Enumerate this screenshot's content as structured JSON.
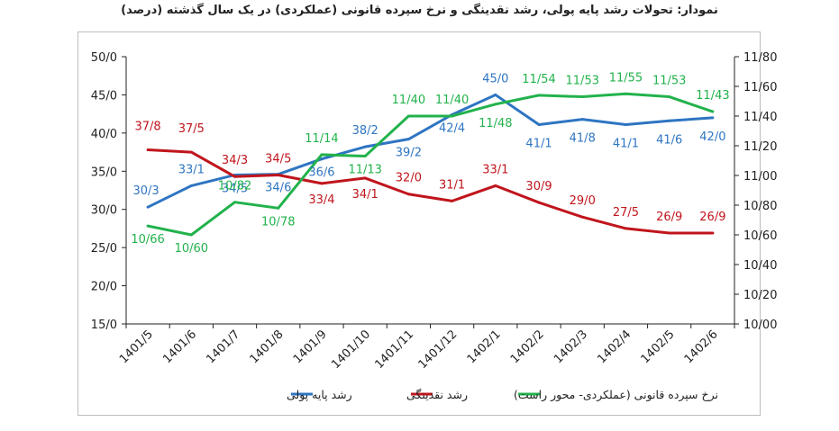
{
  "title": "نمودار: تحولات رشد پایه پولی، رشد نقدینگی و نرخ سپرده قانونی (عملکردی) در یک سال گذشته (درصد)",
  "chart_data": {
    "type": "line",
    "categories": [
      "1401/5",
      "1401/6",
      "1401/7",
      "1401/8",
      "1401/9",
      "1401/10",
      "1401/11",
      "1401/12",
      "1402/1",
      "1402/2",
      "1402/3",
      "1402/4",
      "1402/5",
      "1402/6"
    ],
    "y_left": {
      "min": 15,
      "max": 50,
      "step": 5,
      "tick_labels": [
        "15/0",
        "20/0",
        "25/0",
        "30/0",
        "35/0",
        "40/0",
        "45/0",
        "50/0"
      ]
    },
    "y_right": {
      "min": 10.0,
      "max": 11.8,
      "step": 0.2,
      "tick_labels": [
        "10/00",
        "10/20",
        "10/40",
        "10/60",
        "10/80",
        "11/00",
        "11/20",
        "11/40",
        "11/60",
        "11/80"
      ]
    },
    "grid": false,
    "legend_position": "bottom",
    "series": [
      {
        "name": "رشد پایه پولی",
        "axis": "left",
        "color": "#2e75c2",
        "values": [
          30.3,
          33.1,
          34.5,
          34.6,
          36.6,
          38.2,
          39.2,
          42.4,
          45.0,
          41.1,
          41.8,
          41.1,
          41.6,
          42.0
        ],
        "labels": [
          "30/3",
          "33/1",
          "34/5",
          "34/6",
          "36/6",
          "38/2",
          "39/2",
          "42/4",
          "45/0",
          "41/1",
          "41/8",
          "41/1",
          "41/6",
          "42/0"
        ]
      },
      {
        "name": "رشد نقدینگی",
        "axis": "left",
        "color": "#c0151c",
        "values": [
          37.8,
          37.5,
          34.3,
          34.5,
          33.4,
          34.1,
          32.0,
          31.1,
          33.1,
          30.9,
          29.0,
          27.5,
          26.9,
          26.9
        ],
        "labels": [
          "37/8",
          "37/5",
          "34/3",
          "34/5",
          "33/4",
          "34/1",
          "32/0",
          "31/1",
          "33/1",
          "30/9",
          "29/0",
          "27/5",
          "26/9",
          "26/9"
        ]
      },
      {
        "name": "نرخ سپرده قانونی (عملکردی- محور راست)",
        "axis": "right",
        "color": "#22b24c",
        "values": [
          10.66,
          10.6,
          10.82,
          10.78,
          11.14,
          11.13,
          11.4,
          11.4,
          11.48,
          11.54,
          11.53,
          11.55,
          11.53,
          11.43
        ],
        "labels": [
          "10/66",
          "10/60",
          "10/82",
          "10/78",
          "11/14",
          "11/13",
          "11/40",
          "11/40",
          "11/48",
          "11/54",
          "11/53",
          "11/55",
          "11/53",
          "11/43"
        ]
      }
    ]
  }
}
